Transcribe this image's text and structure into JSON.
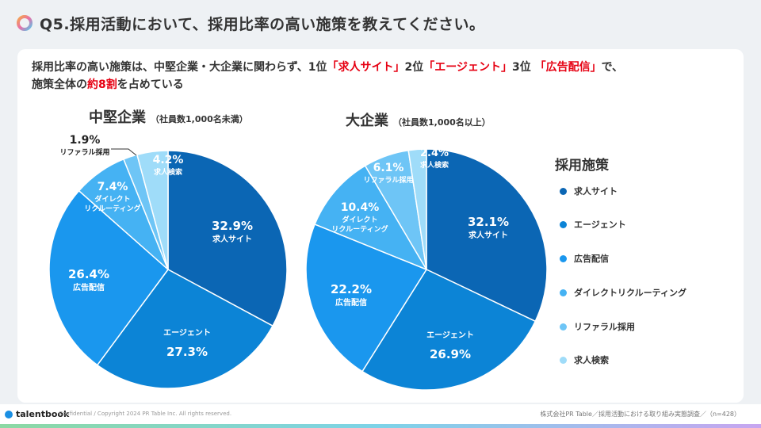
{
  "header": {
    "title": "Q5.採用活動において、採用比率の高い施策を教えてください。"
  },
  "summary": {
    "t1": "採用比率の高い施策は、中堅企業・大企業に関わらず、1位",
    "h1": "「求人サイト」",
    "t2": "2位",
    "h2": "「エージェント」",
    "t3": "3位 ",
    "h3": "「広告配信」",
    "t4": "で、",
    "t5": "施策全体の",
    "h4": "約8割",
    "t6": "を占めている"
  },
  "legend": {
    "title": "採用施策",
    "items": [
      {
        "label": "求人サイト",
        "color": "#0b66b4"
      },
      {
        "label": "エージェント",
        "color": "#0c84d6"
      },
      {
        "label": "広告配信",
        "color": "#1a97ee"
      },
      {
        "label": "ダイレクトリクルーティング",
        "color": "#45b2f3"
      },
      {
        "label": "リファラル採用",
        "color": "#6ec5f6"
      },
      {
        "label": "求人検索",
        "color": "#9fdcf9"
      }
    ]
  },
  "chart_data": [
    {
      "type": "pie",
      "title": "中堅企業",
      "subtitle": "（社員数1,000名未満）",
      "categories": [
        "求人サイト",
        "エージェント",
        "広告配信",
        "ダイレクトリクルーティング",
        "リファラル採用",
        "求人検索"
      ],
      "values": [
        32.9,
        27.3,
        26.4,
        7.4,
        1.9,
        4.2
      ],
      "value_labels": [
        "32.9%",
        "27.3%",
        "26.4%",
        "7.4%",
        "1.9%",
        "4.2%"
      ],
      "slice_labels": [
        "求人サイト",
        "エージェント",
        "広告配信",
        "ダイレクト\nリクルーティング",
        "リファラル採用",
        "求人検索"
      ]
    },
    {
      "type": "pie",
      "title": "大企業",
      "subtitle": "（社員数1,000名以上）",
      "categories": [
        "求人サイト",
        "エージェント",
        "広告配信",
        "ダイレクトリクルーティング",
        "リファラル採用",
        "求人検索"
      ],
      "values": [
        32.1,
        26.9,
        22.2,
        10.4,
        6.1,
        2.4
      ],
      "value_labels": [
        "32.1%",
        "26.9%",
        "22.2%",
        "10.4%",
        "6.1%",
        "2.4%"
      ],
      "slice_labels": [
        "求人サイト",
        "エージェント",
        "広告配信",
        "ダイレクト\nリクルーティング",
        "リファラル採用",
        "求人検索"
      ]
    }
  ],
  "footer": {
    "brand": "talentbook",
    "copyright": "Confidential / Copyright 2024 PR Table Inc. All rights reserved.",
    "source": "株式会社PR Table／採用活動における取り組み実態調査／（n=428）"
  }
}
